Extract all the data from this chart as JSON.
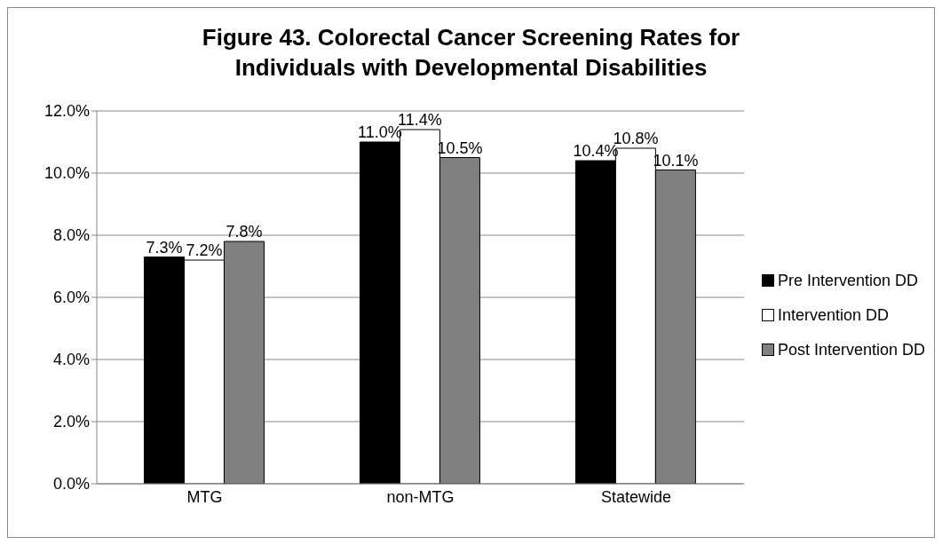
{
  "chart_data": {
    "type": "bar",
    "title": "Figure 43.  Colorectal Cancer Screening Rates for Individuals with Developmental Disabilities",
    "categories": [
      "MTG",
      "non-MTG",
      "Statewide"
    ],
    "series": [
      {
        "name": "Pre Intervention DD",
        "color": "#000000",
        "values": [
          7.3,
          11.0,
          10.4
        ],
        "value_labels": [
          "7.3%",
          "11.0%",
          "10.4%"
        ]
      },
      {
        "name": "Intervention DD",
        "color": "#ffffff",
        "values": [
          7.2,
          11.4,
          10.8
        ],
        "value_labels": [
          "7.2%",
          "11.4%",
          "10.8%"
        ]
      },
      {
        "name": "Post Intervention DD",
        "color": "#808080",
        "values": [
          7.8,
          10.5,
          10.1
        ],
        "value_labels": [
          "7.8%",
          "10.5%",
          "10.1%"
        ]
      }
    ],
    "ylim": [
      0,
      12
    ],
    "yticks": [
      {
        "value": 0,
        "label": "0.0%"
      },
      {
        "value": 2,
        "label": "2.0%"
      },
      {
        "value": 4,
        "label": "4.0%"
      },
      {
        "value": 6,
        "label": "6.0%"
      },
      {
        "value": 8,
        "label": "8.0%"
      },
      {
        "value": 10,
        "label": "10.0%"
      },
      {
        "value": 12,
        "label": "12.0%"
      }
    ],
    "grid": "y",
    "legend": "right"
  }
}
